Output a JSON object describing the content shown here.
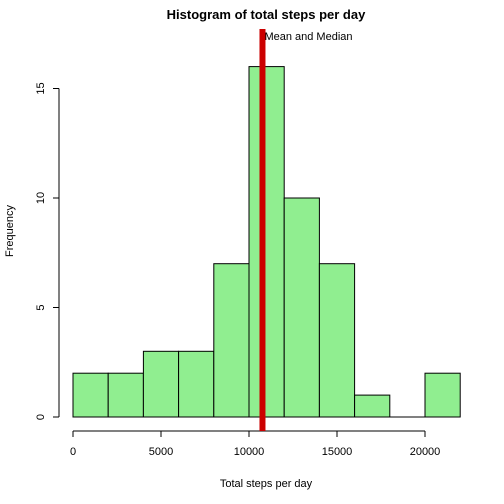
{
  "chart_data": {
    "type": "bar",
    "title": "Histogram of total steps per day",
    "xlabel": "Total steps per day",
    "ylabel": "Frequency",
    "bins": [
      {
        "start": 0,
        "end": 2000,
        "count": 2
      },
      {
        "start": 2000,
        "end": 4000,
        "count": 2
      },
      {
        "start": 4000,
        "end": 6000,
        "count": 3
      },
      {
        "start": 6000,
        "end": 8000,
        "count": 3
      },
      {
        "start": 8000,
        "end": 10000,
        "count": 7
      },
      {
        "start": 10000,
        "end": 12000,
        "count": 16
      },
      {
        "start": 12000,
        "end": 14000,
        "count": 10
      },
      {
        "start": 14000,
        "end": 16000,
        "count": 7
      },
      {
        "start": 16000,
        "end": 18000,
        "count": 1
      },
      {
        "start": 18000,
        "end": 20000,
        "count": 0
      },
      {
        "start": 20000,
        "end": 22000,
        "count": 2
      }
    ],
    "xticks": [
      0,
      5000,
      10000,
      15000,
      20000
    ],
    "yticks": [
      0,
      5,
      10,
      15
    ],
    "xlim": [
      0,
      22000
    ],
    "ylim": [
      0,
      16
    ],
    "reference_line": {
      "x": 10766,
      "label": "Mean and Median",
      "color": "#cc0000"
    },
    "bar_color": "#90ee90",
    "grid": false
  }
}
